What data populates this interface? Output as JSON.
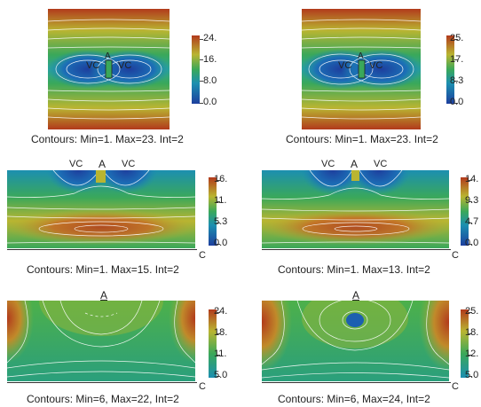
{
  "panels": [
    {
      "id": "p1",
      "caption": "Contours: Min=1. Max=23. Int=2",
      "ticks": [
        "24.",
        "16.",
        "8.0",
        "0.0"
      ],
      "labels": {
        "vc_left": "VC",
        "vc_right": "VC",
        "a": "A"
      }
    },
    {
      "id": "p2",
      "caption": "Contours: Min=1. Max=23. Int=2",
      "ticks": [
        "25.",
        "17.",
        "8.3",
        "0.0"
      ],
      "labels": {
        "vc_left": "VC",
        "vc_right": "VC",
        "a": "A"
      }
    },
    {
      "id": "p3",
      "caption": "Contours: Min=1. Max=15. Int=2",
      "ticks": [
        "16.",
        "11.",
        "5.3",
        "0.0"
      ],
      "labels": {
        "vc_left": "VC",
        "vc_right": "VC",
        "a": "A",
        "c": "C"
      }
    },
    {
      "id": "p4",
      "caption": "Contours: Min=1. Max=13. Int=2",
      "ticks": [
        "14.",
        "9.3",
        "4.7",
        "0.0"
      ],
      "labels": {
        "vc_left": "VC",
        "vc_right": "VC",
        "a": "A",
        "c": "C"
      }
    },
    {
      "id": "p5",
      "caption": "Contours: Min=6, Max=22, Int=2",
      "ticks": [
        "24.",
        "18.",
        "11.",
        "5.0"
      ],
      "labels": {
        "a": "A",
        "c": "C"
      }
    },
    {
      "id": "p6",
      "caption": "Contours: Min=6, Max=24, Int=2",
      "ticks": [
        "25.",
        "18.",
        "12.",
        "5.0"
      ],
      "labels": {
        "a": "A",
        "c": "C"
      }
    }
  ],
  "colorscale": [
    "#1d3f9e",
    "#1c8fb0",
    "#3aa85a",
    "#b9b531",
    "#b23a1c"
  ]
}
